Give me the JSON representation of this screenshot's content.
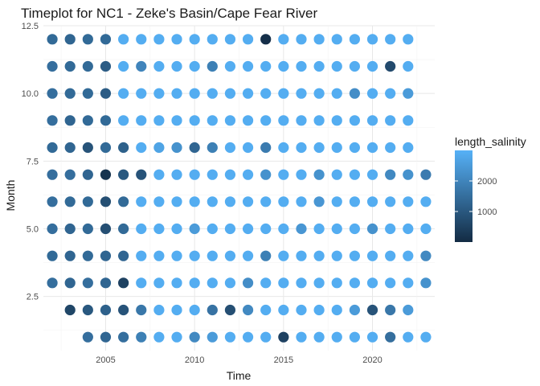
{
  "chart_data": {
    "type": "scatter",
    "title": "Timeplot for NC1 - Zeke's Basin/Cape Fear River",
    "xlabel": "Time",
    "ylabel": "Month",
    "xlim": [
      2001.5,
      2023.5
    ],
    "ylim": [
      0.5,
      12.5
    ],
    "x_ticks": [
      2005,
      2010,
      2015,
      2020
    ],
    "y_ticks": [
      2.5,
      5.0,
      7.5,
      10.0,
      12.5
    ],
    "y_tick_labels": [
      "2.5",
      "5.0",
      "7.5",
      "10.0",
      "12.5"
    ],
    "grid": true,
    "legend": {
      "title": "length_salinity",
      "position": "right",
      "range": [
        0,
        3000
      ],
      "ticks": [
        1000,
        2000
      ],
      "tick_labels": [
        "1000",
        "2000"
      ],
      "colors": {
        "low": "#132B43",
        "high": "#56B1F7"
      }
    },
    "months": [
      1,
      2,
      3,
      4,
      5,
      6,
      7,
      8,
      9,
      10,
      11,
      12
    ],
    "point_years": [
      2002,
      2003,
      2004,
      2005,
      2006,
      2007,
      2008,
      2009,
      2010,
      2011,
      2012,
      2013,
      2014,
      2015,
      2016,
      2017,
      2018,
      2019,
      2020,
      2021,
      2022,
      2023
    ],
    "rows": [
      {
        "month": 1,
        "start": 2004,
        "values": [
          1500,
          1300,
          1500,
          1900,
          2900,
          2900,
          2100,
          2500,
          2900,
          2900,
          2900,
          500,
          2900,
          2900,
          2900,
          2900,
          2900,
          1500,
          2900,
          2900
        ]
      },
      {
        "month": 2,
        "start": 2003,
        "values": [
          600,
          1000,
          1200,
          900,
          1700,
          2900,
          2900,
          2900,
          1600,
          800,
          2100,
          2900,
          2900,
          2900,
          2900,
          2900,
          2500,
          900,
          1700,
          2500
        ]
      },
      {
        "month": 3,
        "start": 2002,
        "values": [
          1500,
          1300,
          1500,
          1300,
          500,
          2900,
          2900,
          2900,
          2900,
          2900,
          2900,
          2200,
          2900,
          2900,
          2900,
          2900,
          2900,
          2900,
          2900,
          2900,
          2900,
          2300
        ]
      },
      {
        "month": 4,
        "start": 2002,
        "values": [
          1400,
          1300,
          1400,
          1300,
          1300,
          2900,
          2900,
          2900,
          2900,
          2900,
          2900,
          2900,
          1900,
          2900,
          2900,
          2900,
          2900,
          2900,
          2900,
          2900,
          2900,
          2100
        ]
      },
      {
        "month": 5,
        "start": 2002,
        "values": [
          1500,
          1300,
          1400,
          800,
          1400,
          2900,
          2900,
          2900,
          2500,
          2900,
          2900,
          2900,
          2900,
          2900,
          2400,
          2900,
          2900,
          2900,
          2300,
          2900,
          2900,
          2900
        ]
      },
      {
        "month": 6,
        "start": 2002,
        "values": [
          1500,
          1400,
          1400,
          800,
          1400,
          2900,
          2900,
          2900,
          2900,
          2900,
          2900,
          2900,
          2900,
          2900,
          2900,
          2400,
          2900,
          2900,
          2900,
          2900,
          2900,
          2900
        ]
      },
      {
        "month": 7,
        "start": 2002,
        "values": [
          1500,
          1500,
          1300,
          200,
          1000,
          900,
          2900,
          2900,
          2900,
          2900,
          2900,
          2900,
          2300,
          2900,
          2900,
          2300,
          2900,
          2900,
          2900,
          2100,
          2300,
          1800
        ]
      },
      {
        "month": 8,
        "start": 2002,
        "values": [
          1400,
          1300,
          900,
          1400,
          1200,
          2900,
          2700,
          2300,
          1300,
          1900,
          2900,
          2900,
          1800,
          2900,
          2900,
          2900,
          2900,
          2900,
          2900,
          2900,
          2900
        ]
      },
      {
        "month": 9,
        "start": 2002,
        "values": [
          1500,
          1300,
          1400,
          1400,
          2900,
          2900,
          2900,
          2900,
          2900,
          2900,
          2900,
          2900,
          2900,
          2900,
          2900,
          2900,
          2900,
          2900,
          2900,
          2900,
          2900
        ]
      },
      {
        "month": 10,
        "start": 2002,
        "values": [
          1500,
          1400,
          1400,
          1100,
          2900,
          2900,
          2900,
          2900,
          2900,
          2900,
          2900,
          2900,
          2900,
          2900,
          2900,
          2900,
          2900,
          2200,
          2900,
          2900,
          2500
        ]
      },
      {
        "month": 11,
        "start": 2002,
        "values": [
          1500,
          1400,
          1400,
          1100,
          2900,
          2000,
          2900,
          2900,
          2900,
          1900,
          2900,
          2900,
          2900,
          2900,
          2900,
          2900,
          2900,
          2900,
          2900,
          700,
          2900
        ]
      },
      {
        "month": 12,
        "start": 2002,
        "values": [
          1400,
          1300,
          1400,
          1400,
          2900,
          2900,
          2900,
          2900,
          2900,
          2900,
          2900,
          2900,
          100,
          2900,
          2900,
          2900,
          2900,
          2900,
          2900,
          2900,
          2900
        ]
      }
    ]
  }
}
